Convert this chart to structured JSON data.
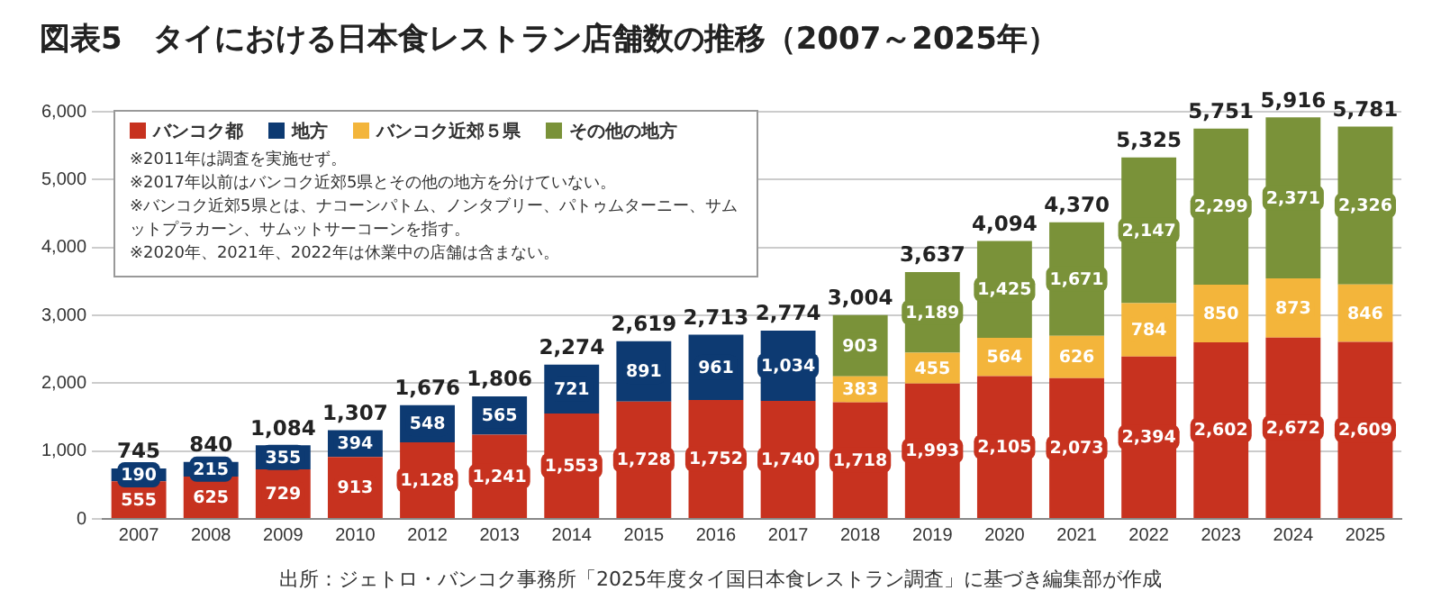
{
  "chart_data": {
    "type": "bar",
    "stacked": true,
    "title": "図表5　タイにおける日本食レストラン店舗数の推移（2007～2025年）",
    "categories": [
      "2007",
      "2008",
      "2009",
      "2010",
      "2012",
      "2013",
      "2014",
      "2015",
      "2016",
      "2017",
      "2018",
      "2019",
      "2020",
      "2021",
      "2022",
      "2023",
      "2024",
      "2025"
    ],
    "series": [
      {
        "name": "バンコク都",
        "color": "#c7321f",
        "values": [
          555,
          625,
          729,
          913,
          1128,
          1241,
          1553,
          1728,
          1752,
          1740,
          1718,
          1993,
          2105,
          2073,
          2394,
          2602,
          2672,
          2609
        ],
        "value_labels": [
          "555",
          "625",
          "729",
          "913",
          "1,128",
          "1,241",
          "1,553",
          "1,728",
          "1,752",
          "1,740",
          "1,718",
          "1,993",
          "2,105",
          "2,073",
          "2,394",
          "2,602",
          "2,672",
          "2,609"
        ]
      },
      {
        "name": "地方",
        "color": "#0d3a72",
        "values": [
          190,
          215,
          355,
          394,
          548,
          565,
          721,
          891,
          961,
          1034,
          null,
          null,
          null,
          null,
          null,
          null,
          null,
          null
        ],
        "value_labels": [
          "190",
          "215",
          "355",
          "394",
          "548",
          "565",
          "721",
          "891",
          "961",
          "1,034",
          null,
          null,
          null,
          null,
          null,
          null,
          null,
          null
        ]
      },
      {
        "name": "バンコク近郊５県",
        "color": "#f3b53b",
        "values": [
          null,
          null,
          null,
          null,
          null,
          null,
          null,
          null,
          null,
          null,
          383,
          455,
          564,
          626,
          784,
          850,
          873,
          846
        ],
        "value_labels": [
          null,
          null,
          null,
          null,
          null,
          null,
          null,
          null,
          null,
          null,
          "383",
          "455",
          "564",
          "626",
          "784",
          "850",
          "873",
          "846"
        ]
      },
      {
        "name": "その他の地方",
        "color": "#7a9239",
        "values": [
          null,
          null,
          null,
          null,
          null,
          null,
          null,
          null,
          null,
          null,
          903,
          1189,
          1425,
          1671,
          2147,
          2299,
          2371,
          2326
        ],
        "value_labels": [
          null,
          null,
          null,
          null,
          null,
          null,
          null,
          null,
          null,
          null,
          "903",
          "1,189",
          "1,425",
          "1,671",
          "2,147",
          "2,299",
          "2,371",
          "2,326"
        ]
      }
    ],
    "totals": [
      "745",
      "840",
      "1,084",
      "1,307",
      "1,676",
      "1,806",
      "2,274",
      "2,619",
      "2,713",
      "2,774",
      "3,004",
      "3,637",
      "4,094",
      "4,370",
      "5,325",
      "5,751",
      "5,916",
      "5,781"
    ],
    "ylim": [
      0,
      6000
    ],
    "yticks": [
      {
        "value": 0,
        "label": "0"
      },
      {
        "value": 1000,
        "label": "1,000"
      },
      {
        "value": 2000,
        "label": "2,000"
      },
      {
        "value": 3000,
        "label": "3,000"
      },
      {
        "value": 4000,
        "label": "4,000"
      },
      {
        "value": 5000,
        "label": "5,000"
      },
      {
        "value": 6000,
        "label": "6,000"
      }
    ],
    "grid": "y",
    "legend": "top left",
    "annotations": [
      "※2011年は調査を実施せず。",
      "※2017年以前はバンコク近郊5県とその他の地方を分けていない。",
      "※バンコク近郊5県とは、ナコーンパトム、ノンタブリー、パトゥムターニー、サムットプラカーン、サムットサーコーンを指す。",
      "※2020年、2021年、2022年は休業中の店舗は含まない。",
      "出所：ジェトロ・バンコク事務所「2025年度タイ国日本食レストラン調査」に基づき編集部が作成"
    ]
  }
}
